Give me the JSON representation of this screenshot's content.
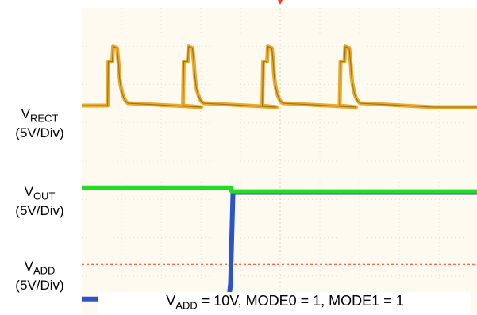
{
  "channels": [
    {
      "name": "V",
      "sub": "RECT",
      "scale": "(5V/Div)",
      "color": "#e6a21a"
    },
    {
      "name": "V",
      "sub": "OUT",
      "scale": "(5V/Div)",
      "color": "#22dd22"
    },
    {
      "name": "V",
      "sub": "ADD",
      "scale": "(5V/Div)",
      "color": "#2a55c8"
    }
  ],
  "caption": {
    "prefix": "V",
    "sub": "ADD",
    "text": " = 10V, MODE0 = 1, MODE1 = 1"
  },
  "chart_data": {
    "type": "line",
    "grid": true,
    "x_divisions": 10,
    "y_divisions": 8,
    "trigger_color": "#ff3b1f",
    "series": [
      {
        "channel": "RECT",
        "description_unit": "divisions",
        "pulse_starts_div": [
          0.65,
          2.55,
          4.55,
          6.5
        ],
        "baseline_div": 5.45,
        "peak_div": 6.95,
        "shelf_div": 6.6
      },
      {
        "channel": "OUT",
        "level_before_div": 3.3,
        "level_after_div": 3.2
      },
      {
        "channel": "ADD",
        "level_before_div": 0.4,
        "level_after_div": 3.15,
        "step_at_div": 3.75
      }
    ],
    "marker_level_div": 1.3
  }
}
